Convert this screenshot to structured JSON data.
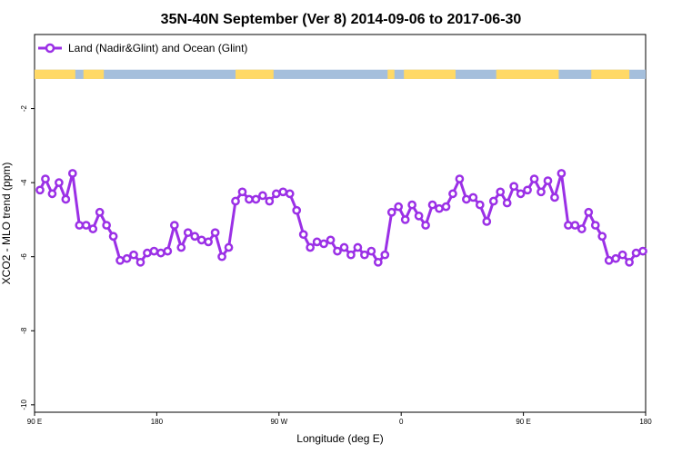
{
  "chart_data": {
    "type": "line",
    "title": "35N-40N September (Ver 8)   2014-09-06 to 2017-06-30",
    "xlabel": "Longitude (deg E)",
    "ylabel": "XCO2 - MLO trend (ppm)",
    "xlim": [
      90,
      540
    ],
    "ylim": [
      -10.2,
      0
    ],
    "x_ticks": [
      {
        "value": 90,
        "label": "90 E"
      },
      {
        "value": 180,
        "label": "180"
      },
      {
        "value": 270,
        "label": "90 W"
      },
      {
        "value": 360,
        "label": "0"
      },
      {
        "value": 450,
        "label": "90 E"
      },
      {
        "value": 540,
        "label": "180"
      }
    ],
    "y_ticks": [
      {
        "value": -2,
        "label": "-2"
      },
      {
        "value": -4,
        "label": "-4"
      },
      {
        "value": -6,
        "label": "-6"
      },
      {
        "value": -8,
        "label": "-8"
      },
      {
        "value": -10,
        "label": "-10"
      }
    ],
    "legend": {
      "position": "top-left",
      "entries": [
        "Land (Nadir&Glint) and Ocean (Glint)"
      ]
    },
    "colors": {
      "series": "#9b30e6",
      "land": "#ffd966",
      "ocean": "#a5bfdc"
    },
    "land_ocean_strip": {
      "y_range": [
        -1.2,
        -0.95
      ],
      "land_segments": [
        [
          90,
          120
        ],
        [
          126,
          141
        ],
        [
          238,
          266
        ],
        [
          350,
          355
        ],
        [
          362,
          400
        ],
        [
          430,
          476
        ],
        [
          500,
          528
        ]
      ]
    },
    "series": [
      {
        "name": "Land (Nadir&Glint) and Ocean (Glint)",
        "x": [
          94,
          98,
          103,
          108,
          113,
          118,
          123,
          128,
          133,
          138,
          143,
          148,
          153,
          158,
          163,
          168,
          173,
          178,
          183,
          188,
          193,
          198,
          203,
          208,
          213,
          218,
          223,
          228,
          233,
          238,
          243,
          248,
          253,
          258,
          263,
          268,
          273,
          278,
          283,
          288,
          293,
          298,
          303,
          308,
          313,
          318,
          323,
          328,
          333,
          338,
          343,
          348,
          353,
          358,
          363,
          368,
          373,
          378,
          383,
          388,
          393,
          398,
          403,
          408,
          413,
          418,
          423,
          428,
          433,
          438,
          443,
          448,
          453,
          458,
          463,
          468,
          473,
          478,
          483,
          488,
          493,
          498,
          503,
          508,
          513,
          518,
          523,
          528,
          533,
          538
        ],
        "y": [
          -4.2,
          -3.9,
          -4.3,
          -4.0,
          -4.45,
          -3.75,
          -5.15,
          -5.15,
          -5.25,
          -4.8,
          -5.15,
          -5.45,
          -6.1,
          -6.05,
          -5.95,
          -6.15,
          -5.9,
          -5.85,
          -5.9,
          -5.85,
          -5.15,
          -5.75,
          -5.35,
          -5.45,
          -5.55,
          -5.6,
          -5.35,
          -6.0,
          -5.75,
          -4.5,
          -4.25,
          -4.45,
          -4.45,
          -4.35,
          -4.5,
          -4.3,
          -4.25,
          -4.3,
          -4.75,
          -5.4,
          -5.75,
          -5.6,
          -5.65,
          -5.55,
          -5.85,
          -5.75,
          -5.95,
          -5.75,
          -5.95,
          -5.85,
          -6.15,
          -5.95,
          -4.8,
          -4.65,
          -5.0,
          -4.6,
          -4.9,
          -5.15,
          -4.6,
          -4.7,
          -4.65,
          -4.3,
          -3.9,
          -4.45,
          -4.4,
          -4.6,
          -5.05,
          -4.5,
          -4.25,
          -4.55,
          -4.1,
          -4.3,
          -4.2,
          -3.9,
          -4.25,
          -3.95,
          -4.4,
          -3.75,
          -5.15,
          -5.15,
          -5.25,
          -4.8,
          -5.15,
          -5.45,
          -6.1,
          -6.05,
          -5.95,
          -6.15,
          -5.9,
          -5.85
        ]
      }
    ]
  }
}
